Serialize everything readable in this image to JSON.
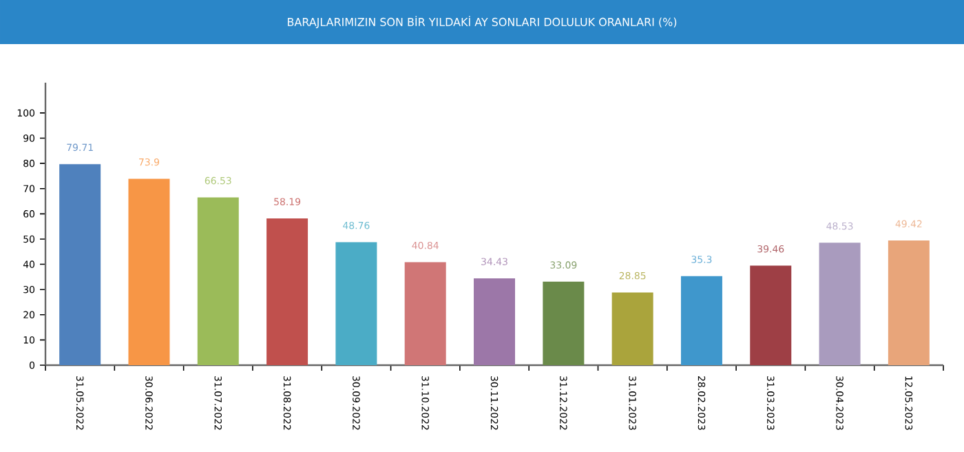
{
  "chart_data": {
    "type": "bar",
    "title": "BARAJLARIMIZIN SON BİR YILDAKİ AY SONLARI DOLULUK ORANLARI (%)",
    "categories": [
      "31.05.2022",
      "30.06.2022",
      "31.07.2022",
      "31.08.2022",
      "30.09.2022",
      "31.10.2022",
      "30.11.2022",
      "31.12.2022",
      "31.01.2023",
      "28.02.2023",
      "31.03.2023",
      "30.04.2023",
      "12.05.2023"
    ],
    "values": [
      79.71,
      73.9,
      66.53,
      58.19,
      48.76,
      40.84,
      34.43,
      33.09,
      28.85,
      35.3,
      39.46,
      48.53,
      49.42
    ],
    "colors": [
      "#4f81bd",
      "#f79646",
      "#9bbb59",
      "#c0504d",
      "#4bacc6",
      "#d07676",
      "#9c77a8",
      "#6a8a4a",
      "#aaa43c",
      "#3f97cc",
      "#9e3f45",
      "#a99bbe",
      "#e8a57a"
    ],
    "ylim": [
      0,
      112
    ],
    "yticks": [
      0,
      10,
      20,
      30,
      40,
      50,
      60,
      70,
      80,
      90,
      100
    ],
    "grid": false,
    "data_labels": true
  }
}
